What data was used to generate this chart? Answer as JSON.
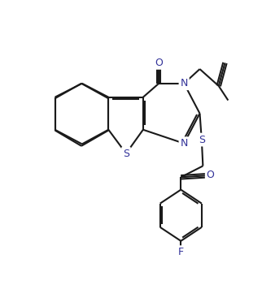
{
  "bg_color": "#ffffff",
  "line_color": "#1a1a1a",
  "N_color": "#1a1a1a",
  "S_color": "#1a1a1a",
  "O_color": "#1a1a1a",
  "F_color": "#1a1a1a",
  "label_color": "#333399",
  "line_width": 1.5,
  "font_size": 9,
  "figsize": [
    3.22,
    3.56
  ],
  "dpi": 100,
  "xlim": [
    0,
    10
  ],
  "ylim": [
    0,
    11
  ]
}
